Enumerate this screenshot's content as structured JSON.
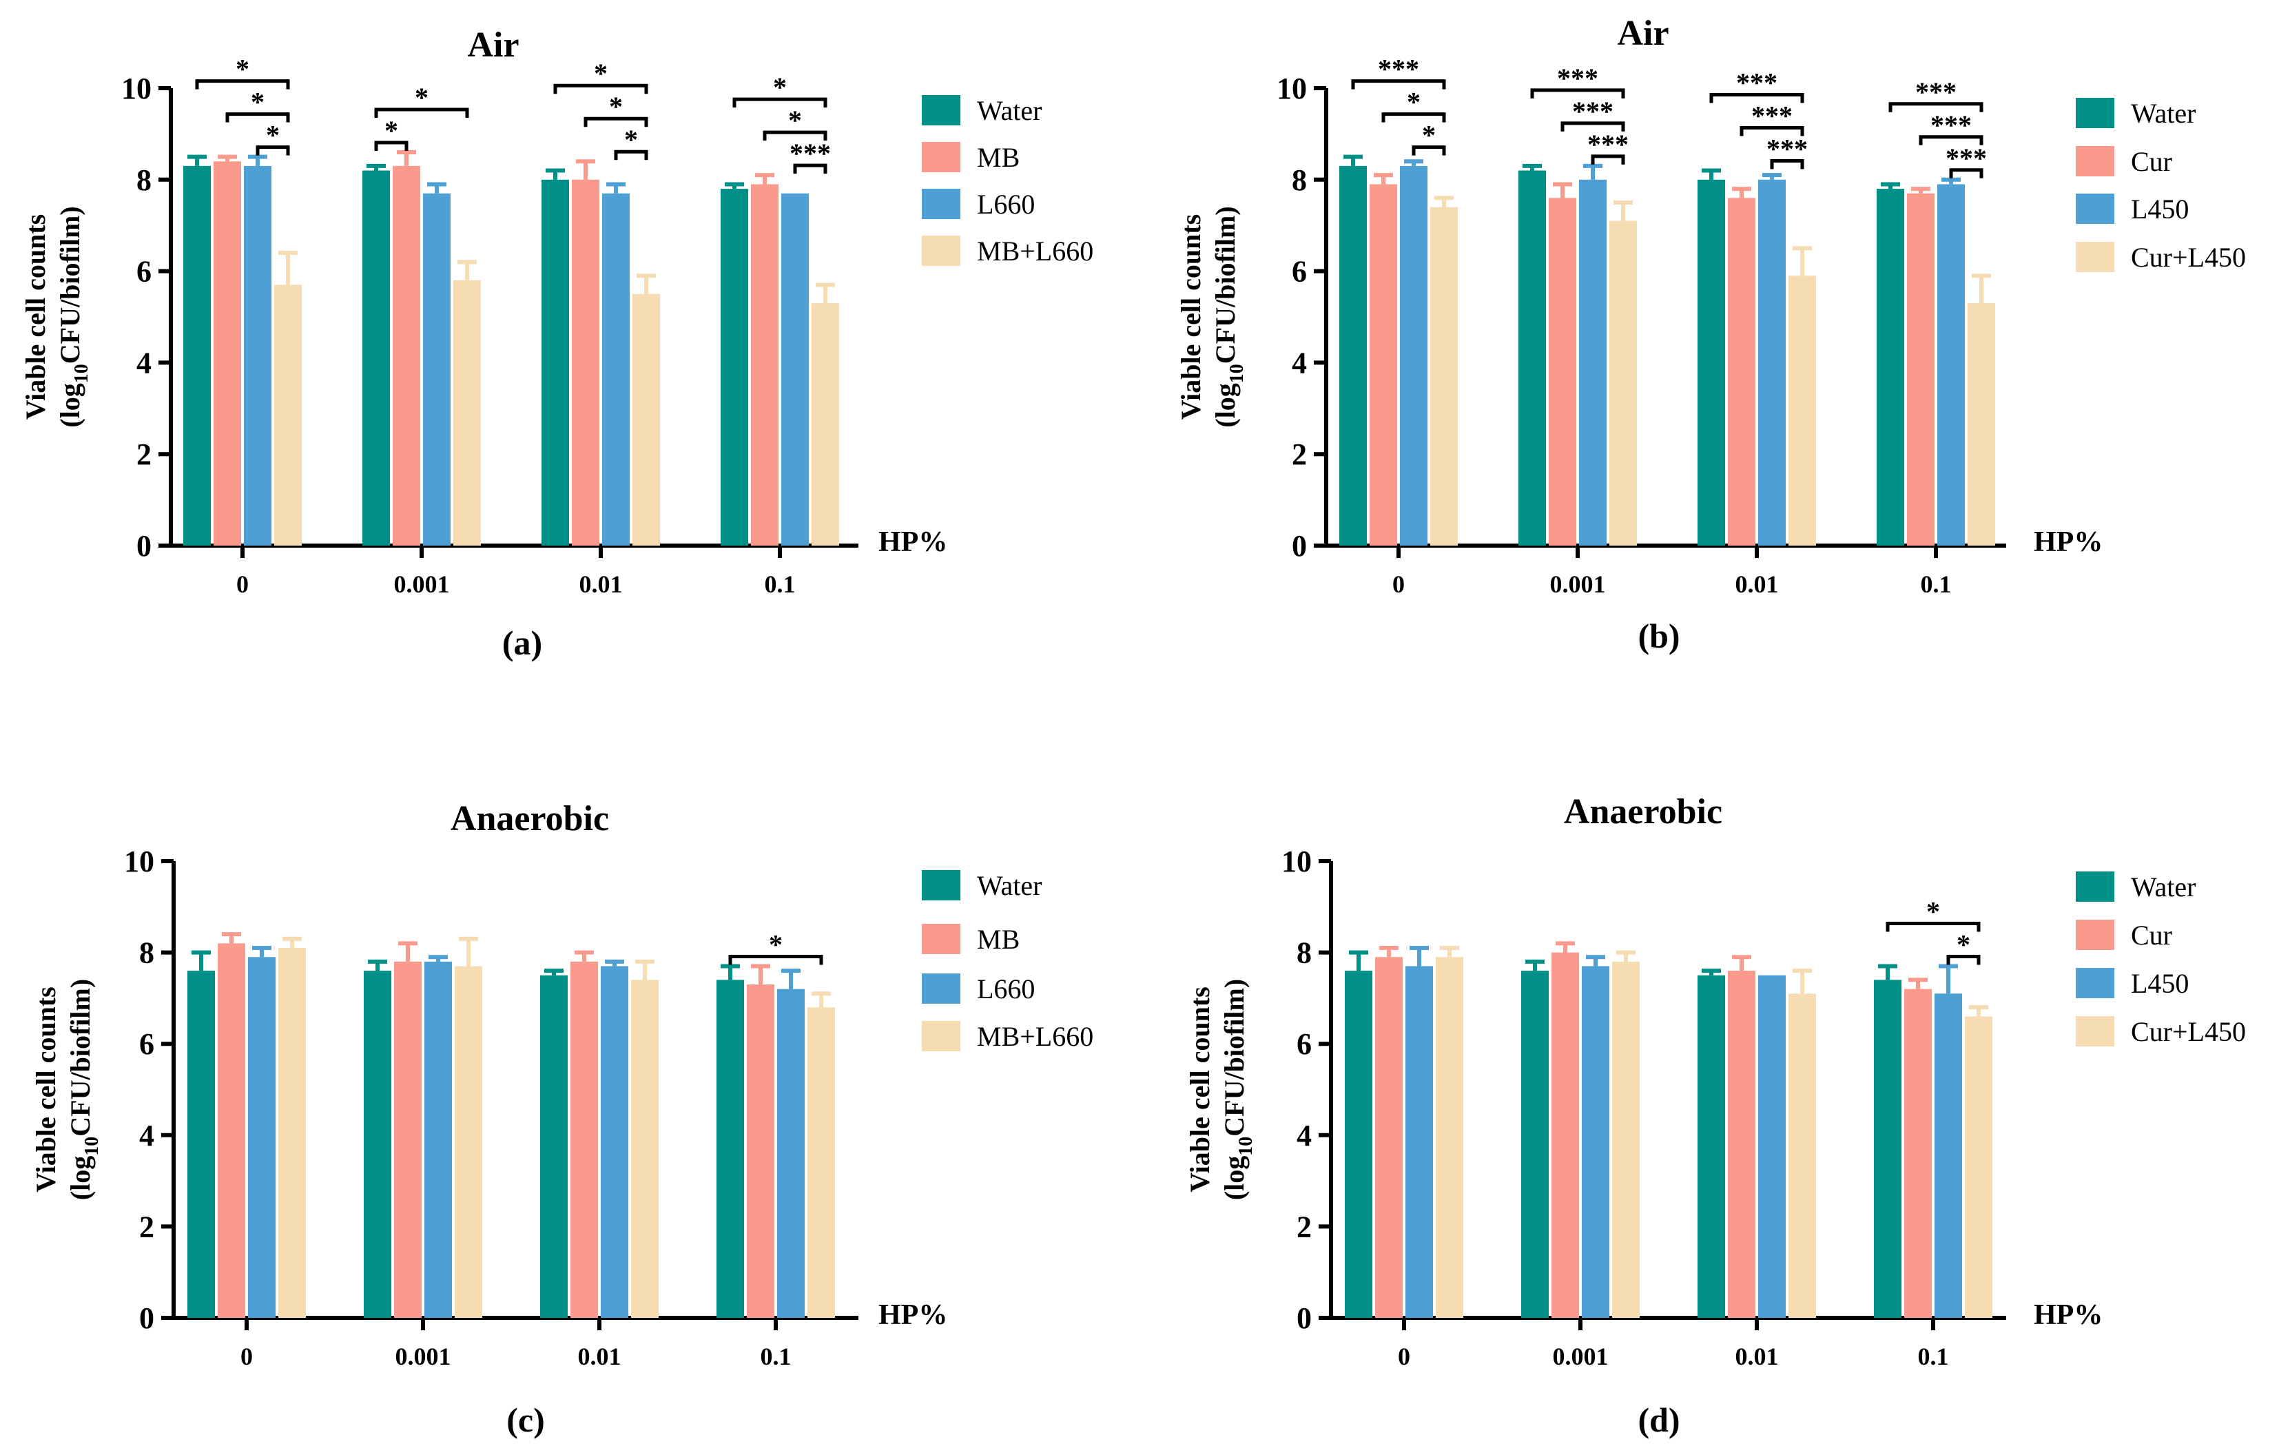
{
  "colors": {
    "Water": "#009087",
    "MB": "#fa9a8d",
    "Cur": "#fa9a8d",
    "L660": "#4e9fd3",
    "L450": "#4e9fd3",
    "MB+L660": "#f6dcb3",
    "Cur+L450": "#f6dcb3"
  },
  "chart_data": [
    {
      "type": "bar",
      "panel_label": "(a)",
      "title": "Air",
      "ylabel_line1": "Viable cell counts",
      "ylabel_line2_prefix": "(log",
      "ylabel_line2_sub": "10",
      "ylabel_line2_suffix": "CFU/biofilm)",
      "xlabel": "HP%",
      "ylim": [
        0,
        10
      ],
      "yticks": [
        0,
        2,
        4,
        6,
        8,
        10
      ],
      "categories": [
        "0",
        "0.001",
        "0.01",
        "0.1"
      ],
      "series": [
        {
          "name": "Water",
          "values": [
            8.3,
            8.2,
            8.0,
            7.8
          ],
          "errors": [
            0.2,
            0.1,
            0.2,
            0.1
          ]
        },
        {
          "name": "MB",
          "values": [
            8.4,
            8.3,
            8.0,
            7.9
          ],
          "errors": [
            0.1,
            0.3,
            0.4,
            0.2
          ]
        },
        {
          "name": "L660",
          "values": [
            8.3,
            7.7,
            7.7,
            7.7
          ],
          "errors": [
            0.2,
            0.2,
            0.2,
            0.0
          ]
        },
        {
          "name": "MB+L660",
          "values": [
            5.7,
            5.8,
            5.5,
            5.3
          ],
          "errors": [
            0.7,
            0.4,
            0.4,
            0.4
          ]
        }
      ],
      "significance": [
        {
          "category": 0,
          "from": 2,
          "to": 3,
          "label": "*"
        },
        {
          "category": 0,
          "from": 1,
          "to": 3,
          "label": "*"
        },
        {
          "category": 0,
          "from": 0,
          "to": 3,
          "label": "*"
        },
        {
          "category": 1,
          "from": 0,
          "to": 1,
          "label": "*"
        },
        {
          "category": 1,
          "from": 0,
          "to": 3,
          "label": "*"
        },
        {
          "category": 2,
          "from": 2,
          "to": 3,
          "label": "*"
        },
        {
          "category": 2,
          "from": 1,
          "to": 3,
          "label": "*"
        },
        {
          "category": 2,
          "from": 0,
          "to": 3,
          "label": "*"
        },
        {
          "category": 3,
          "from": 2,
          "to": 3,
          "label": "***"
        },
        {
          "category": 3,
          "from": 1,
          "to": 3,
          "label": "*"
        },
        {
          "category": 3,
          "from": 0,
          "to": 3,
          "label": "*"
        }
      ]
    },
    {
      "type": "bar",
      "panel_label": "(b)",
      "title": "Air",
      "ylabel_line1": "Viable cell counts",
      "ylabel_line2_prefix": "(log",
      "ylabel_line2_sub": "10",
      "ylabel_line2_suffix": "CFU/biofilm)",
      "xlabel": "HP%",
      "ylim": [
        0,
        10
      ],
      "yticks": [
        0,
        2,
        4,
        6,
        8,
        10
      ],
      "categories": [
        "0",
        "0.001",
        "0.01",
        "0.1"
      ],
      "series": [
        {
          "name": "Water",
          "values": [
            8.3,
            8.2,
            8.0,
            7.8
          ],
          "errors": [
            0.2,
            0.1,
            0.2,
            0.1
          ]
        },
        {
          "name": "Cur",
          "values": [
            7.9,
            7.6,
            7.6,
            7.7
          ],
          "errors": [
            0.2,
            0.3,
            0.2,
            0.1
          ]
        },
        {
          "name": "L450",
          "values": [
            8.3,
            8.0,
            8.0,
            7.9
          ],
          "errors": [
            0.1,
            0.3,
            0.1,
            0.1
          ]
        },
        {
          "name": "Cur+L450",
          "values": [
            7.4,
            7.1,
            5.9,
            5.3
          ],
          "errors": [
            0.2,
            0.4,
            0.6,
            0.6
          ]
        }
      ],
      "significance": [
        {
          "category": 0,
          "from": 2,
          "to": 3,
          "label": "*"
        },
        {
          "category": 0,
          "from": 1,
          "to": 3,
          "label": "*"
        },
        {
          "category": 0,
          "from": 0,
          "to": 3,
          "label": "***"
        },
        {
          "category": 1,
          "from": 2,
          "to": 3,
          "label": "***"
        },
        {
          "category": 1,
          "from": 1,
          "to": 3,
          "label": "***"
        },
        {
          "category": 1,
          "from": 0,
          "to": 3,
          "label": "***"
        },
        {
          "category": 2,
          "from": 2,
          "to": 3,
          "label": "***"
        },
        {
          "category": 2,
          "from": 1,
          "to": 3,
          "label": "***"
        },
        {
          "category": 2,
          "from": 0,
          "to": 3,
          "label": "***"
        },
        {
          "category": 3,
          "from": 2,
          "to": 3,
          "label": "***"
        },
        {
          "category": 3,
          "from": 1,
          "to": 3,
          "label": "***"
        },
        {
          "category": 3,
          "from": 0,
          "to": 3,
          "label": "***"
        }
      ]
    },
    {
      "type": "bar",
      "panel_label": "(c)",
      "title": "Anaerobic",
      "ylabel_line1": "Viable cell counts",
      "ylabel_line2_prefix": "(log",
      "ylabel_line2_sub": "10",
      "ylabel_line2_suffix": "CFU/biofilm)",
      "xlabel": "HP%",
      "ylim": [
        0,
        10
      ],
      "yticks": [
        0,
        2,
        4,
        6,
        8,
        10
      ],
      "categories": [
        "0",
        "0.001",
        "0.01",
        "0.1"
      ],
      "series": [
        {
          "name": "Water",
          "values": [
            7.6,
            7.6,
            7.5,
            7.4
          ],
          "errors": [
            0.4,
            0.2,
            0.1,
            0.3
          ]
        },
        {
          "name": "MB",
          "values": [
            8.2,
            7.8,
            7.8,
            7.3
          ],
          "errors": [
            0.2,
            0.4,
            0.2,
            0.4
          ]
        },
        {
          "name": "L660",
          "values": [
            7.9,
            7.8,
            7.7,
            7.2
          ],
          "errors": [
            0.2,
            0.1,
            0.1,
            0.4
          ]
        },
        {
          "name": "MB+L660",
          "values": [
            8.1,
            7.7,
            7.4,
            6.8
          ],
          "errors": [
            0.2,
            0.6,
            0.4,
            0.3
          ]
        }
      ],
      "significance": [
        {
          "category": 3,
          "from": 0,
          "to": 3,
          "label": "*"
        }
      ]
    },
    {
      "type": "bar",
      "panel_label": "(d)",
      "title": "Anaerobic",
      "ylabel_line1": "Viable cell counts",
      "ylabel_line2_prefix": "(log",
      "ylabel_line2_sub": "10",
      "ylabel_line2_suffix": "CFU/biofilm)",
      "xlabel": "HP%",
      "ylim": [
        0,
        10
      ],
      "yticks": [
        0,
        2,
        4,
        6,
        8,
        10
      ],
      "categories": [
        "0",
        "0.001",
        "0.01",
        "0.1"
      ],
      "series": [
        {
          "name": "Water",
          "values": [
            7.6,
            7.6,
            7.5,
            7.4
          ],
          "errors": [
            0.4,
            0.2,
            0.1,
            0.3
          ]
        },
        {
          "name": "Cur",
          "values": [
            7.9,
            8.0,
            7.6,
            7.2
          ],
          "errors": [
            0.2,
            0.2,
            0.3,
            0.2
          ]
        },
        {
          "name": "L450",
          "values": [
            7.7,
            7.7,
            7.5,
            7.1
          ],
          "errors": [
            0.4,
            0.2,
            0.0,
            0.6
          ]
        },
        {
          "name": "Cur+L450",
          "values": [
            7.9,
            7.8,
            7.1,
            6.6
          ],
          "errors": [
            0.2,
            0.2,
            0.5,
            0.2
          ]
        }
      ],
      "significance": [
        {
          "category": 3,
          "from": 2,
          "to": 3,
          "label": "*"
        },
        {
          "category": 3,
          "from": 0,
          "to": 3,
          "label": "*"
        }
      ]
    }
  ]
}
